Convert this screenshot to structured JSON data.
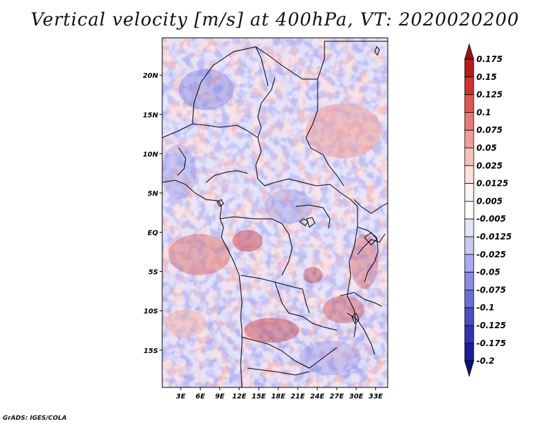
{
  "title": "Vertical velocity [m/s] at 400hPa, VT: 2020020200",
  "credit": "GrADS: IGES/COLA",
  "map": {
    "lat_ticks": [
      {
        "value": 20,
        "label": "20N"
      },
      {
        "value": 15,
        "label": "15N"
      },
      {
        "value": 10,
        "label": "10N"
      },
      {
        "value": 5,
        "label": "5N"
      },
      {
        "value": 0,
        "label": "EQ"
      },
      {
        "value": -5,
        "label": "5S"
      },
      {
        "value": -10,
        "label": "10S"
      },
      {
        "value": -15,
        "label": "15S"
      }
    ],
    "lon_ticks": [
      {
        "value": 3,
        "label": "3E"
      },
      {
        "value": 6,
        "label": "6E"
      },
      {
        "value": 9,
        "label": "9E"
      },
      {
        "value": 12,
        "label": "12E"
      },
      {
        "value": 15,
        "label": "15E"
      },
      {
        "value": 18,
        "label": "18E"
      },
      {
        "value": 21,
        "label": "21E"
      },
      {
        "value": 24,
        "label": "24E"
      },
      {
        "value": 27,
        "label": "27E"
      },
      {
        "value": 30,
        "label": "30E"
      },
      {
        "value": 33,
        "label": "33E"
      }
    ],
    "lon_range": [
      0.15,
      34.85
    ],
    "lat_range": [
      -19.75,
      24.75
    ]
  },
  "colorbar": {
    "levels": [
      "0.175",
      "0.15",
      "0.125",
      "0.1",
      "0.075",
      "0.05",
      "0.025",
      "0.0125",
      "0.005",
      "-0.005",
      "-0.0125",
      "-0.025",
      "-0.05",
      "-0.075",
      "-0.1",
      "-0.125",
      "-0.175",
      "-0.2"
    ],
    "colors": [
      "#a01010",
      "#b71c1c",
      "#cc3333",
      "#dc5a52",
      "#e57d74",
      "#ee9f97",
      "#f5c3bd",
      "#fbe0dc",
      "#fff4f2",
      "#ffffff",
      "#e4e4fb",
      "#c9c9f4",
      "#aaaaee",
      "#8c8ce4",
      "#6e6ed8",
      "#4e4ec8",
      "#3333b0",
      "#1d1d99",
      "#12127a"
    ]
  }
}
